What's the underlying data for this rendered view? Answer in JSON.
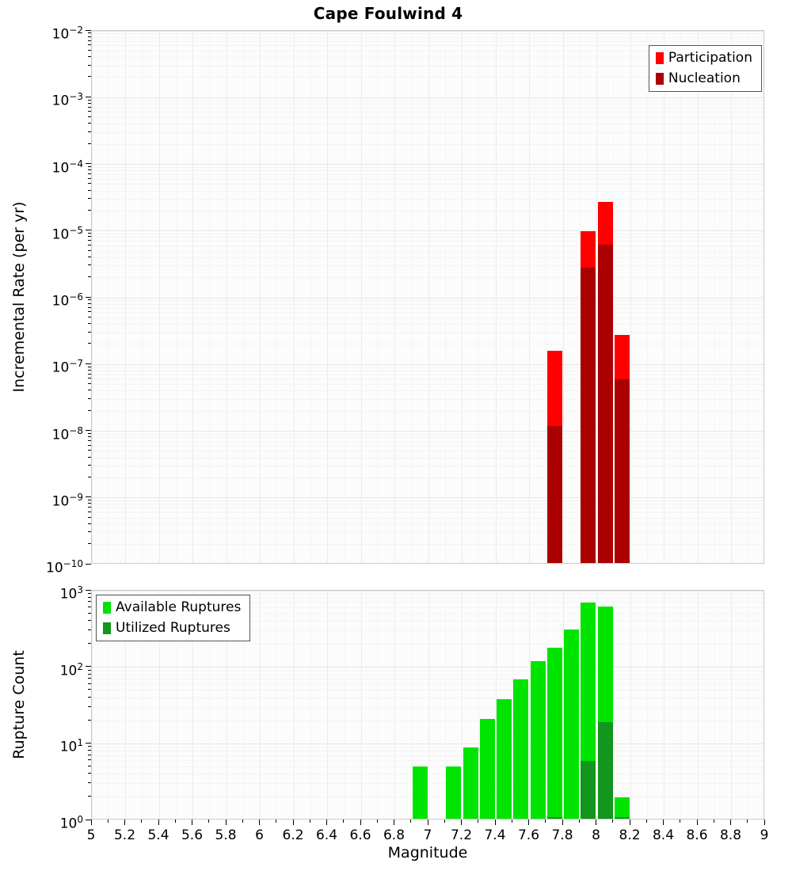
{
  "title": "Cape Foulwind 4",
  "xlabel": "Magnitude",
  "colors": {
    "participation": "#ff0000",
    "nucleation": "#aa0000",
    "available": "#00e400",
    "utilized": "#12961e"
  },
  "chart_data": [
    {
      "type": "bar",
      "title": "Cape Foulwind 4",
      "ylabel": "Incremental Rate (per yr)",
      "yscale": "log",
      "x_range": [
        5,
        9
      ],
      "y_exp_top": -2,
      "y_exp_bottom": -10,
      "ytick_exponents": [
        -2,
        -3,
        -4,
        -5,
        -6,
        -7,
        -8,
        -9,
        -10
      ],
      "bar_width": 0.09,
      "grid": true,
      "legend_position": "top-right",
      "series": [
        {
          "name": "Participation",
          "color": "#ff0000",
          "x": [
            7.75,
            7.95,
            8.05,
            8.15
          ],
          "values": [
            1.6e-07,
            1e-05,
            2.7e-05,
            2.8e-07
          ]
        },
        {
          "name": "Nucleation",
          "color": "#aa0000",
          "x": [
            7.75,
            7.95,
            8.05,
            8.15
          ],
          "values": [
            1.2e-08,
            2.8e-06,
            6.3e-06,
            6e-08
          ]
        }
      ]
    },
    {
      "type": "bar",
      "ylabel": "Rupture Count",
      "xlabel": "Magnitude",
      "yscale": "log",
      "x_range": [
        5,
        9
      ],
      "y_exp_top": 3,
      "y_exp_bottom": 0,
      "ytick_exponents": [
        0,
        1,
        2,
        3
      ],
      "xtick_labels": [
        "5",
        "5.2",
        "5.4",
        "5.6",
        "5.8",
        "6",
        "6.2",
        "6.4",
        "6.6",
        "6.8",
        "7",
        "7.2",
        "7.4",
        "7.6",
        "7.8",
        "8",
        "8.2",
        "8.4",
        "8.6",
        "8.8",
        "9"
      ],
      "bar_width": 0.09,
      "grid": true,
      "legend_position": "top-left",
      "series": [
        {
          "name": "Available Ruptures",
          "color": "#00e400",
          "x": [
            6.95,
            7.15,
            7.25,
            7.35,
            7.45,
            7.55,
            7.65,
            7.75,
            7.85,
            7.95,
            8.05,
            8.15
          ],
          "values": [
            5,
            5,
            9,
            21,
            38,
            70,
            120,
            180,
            310,
            700,
            620,
            2
          ]
        },
        {
          "name": "Utilized Ruptures",
          "color": "#12961e",
          "x": [
            7.75,
            7.95,
            8.05,
            8.15
          ],
          "values": [
            1,
            6,
            19,
            1
          ]
        }
      ]
    }
  ]
}
